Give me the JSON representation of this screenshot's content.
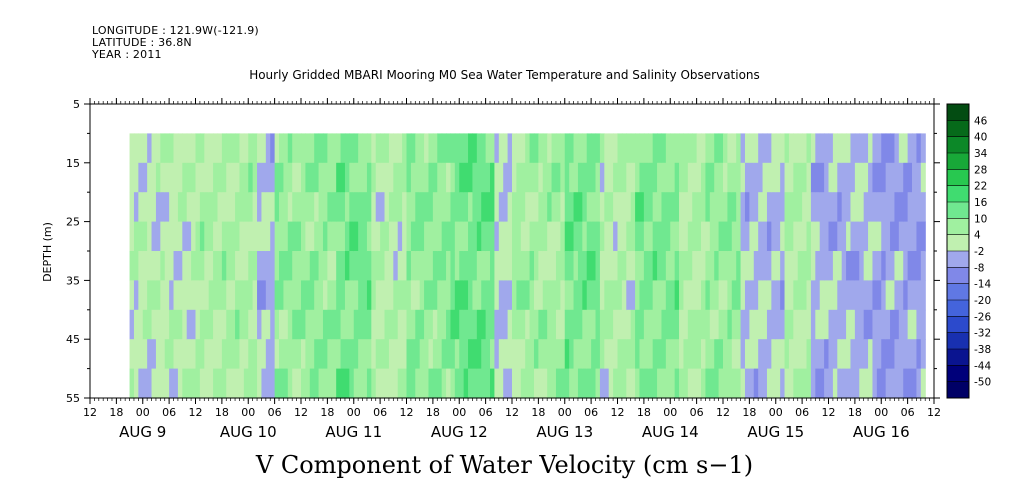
{
  "header": {
    "longitude": "LONGITUDE : 121.9W(-121.9)",
    "latitude": "LATITUDE : 36.8N",
    "year": "YEAR : 2011"
  },
  "chart_data": {
    "type": "heatmap",
    "title": "Hourly Gridded MBARI Mooring M0 Sea Water Temperature and Salinity Observations",
    "xlabel": "V Component of Water Velocity (cm s−1)",
    "ylabel": "DEPTH (m)",
    "ylim": [
      5,
      55
    ],
    "y_reversed": true,
    "y_ticks": [
      5,
      15,
      25,
      35,
      45,
      55
    ],
    "x_hour_ticks": [
      "12",
      "18",
      "00",
      "06",
      "12",
      "18",
      "00",
      "06",
      "12",
      "18",
      "00",
      "06",
      "12",
      "18",
      "00",
      "06",
      "12",
      "18",
      "00",
      "06",
      "12",
      "18",
      "00",
      "06",
      "12",
      "18",
      "00",
      "06",
      "12",
      "18",
      "00",
      "06",
      "12"
    ],
    "x_day_labels": [
      "AUG  9",
      "AUG 10",
      "AUG 11",
      "AUG 12",
      "AUG 13",
      "AUG 14",
      "AUG 15",
      "AUG 16"
    ],
    "x_range_hours": [
      -12,
      180
    ],
    "data_x_range_hours": [
      -3,
      178
    ],
    "data_depth_range": [
      10,
      55
    ],
    "colorbar_levels": [
      -50,
      -44,
      -38,
      -32,
      -26,
      -20,
      -14,
      -8,
      -2,
      4,
      10,
      16,
      22,
      28,
      34,
      40,
      46
    ],
    "colorbar_labels": [
      "46",
      "40",
      "34",
      "28",
      "22",
      "16",
      "10",
      "4",
      "-2",
      "-8",
      "-14",
      "-20",
      "-26",
      "-32",
      "-38",
      "-44",
      "-50"
    ],
    "colorbar_colors": [
      "#000066",
      "#00007a",
      "#0a1490",
      "#1830b0",
      "#2c4acc",
      "#4464dc",
      "#6078e4",
      "#8088e8",
      "#a0a8ec",
      "#c0f0b0",
      "#a0f0a0",
      "#70e890",
      "#40dc70",
      "#28c850",
      "#18a838",
      "#0c8828",
      "#066a1a",
      "#034c12"
    ],
    "bands": [
      {
        "x": [
          -3,
          12
        ],
        "v": 1
      },
      {
        "x": [
          12,
          26
        ],
        "v": 5
      },
      {
        "x": [
          26,
          30
        ],
        "v": -3
      },
      {
        "x": [
          30,
          44
        ],
        "v": 8
      },
      {
        "x": [
          44,
          52
        ],
        "v": 12
      },
      {
        "x": [
          52,
          60
        ],
        "v": 3
      },
      {
        "x": [
          60,
          70
        ],
        "v": 9
      },
      {
        "x": [
          70,
          80
        ],
        "v": 13
      },
      {
        "x": [
          80,
          84
        ],
        "v": -2
      },
      {
        "x": [
          84,
          96
        ],
        "v": 6
      },
      {
        "x": [
          96,
          104
        ],
        "v": 12
      },
      {
        "x": [
          104,
          112
        ],
        "v": 3
      },
      {
        "x": [
          112,
          122
        ],
        "v": 11
      },
      {
        "x": [
          122,
          128
        ],
        "v": 4
      },
      {
        "x": [
          128,
          136
        ],
        "v": 8
      },
      {
        "x": [
          136,
          146
        ],
        "v": -3
      },
      {
        "x": [
          146,
          152
        ],
        "v": 4
      },
      {
        "x": [
          152,
          166
        ],
        "v": -4
      },
      {
        "x": [
          166,
          178
        ],
        "v": -6
      }
    ]
  }
}
